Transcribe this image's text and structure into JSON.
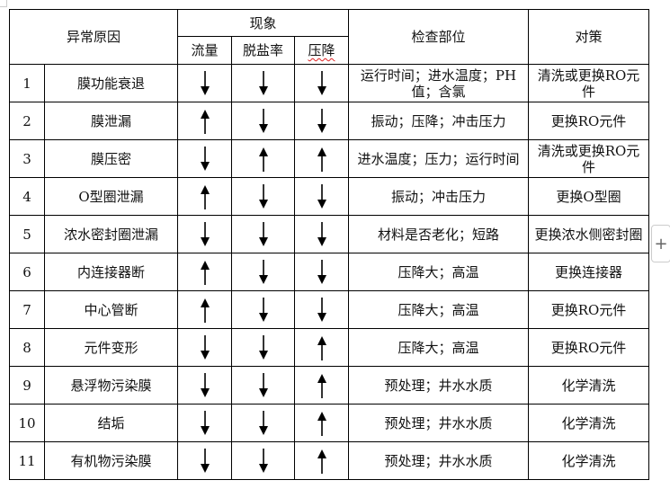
{
  "header": {
    "cause": "异常原因",
    "phenomenon": "现象",
    "flow": "流量",
    "salt_rejection": "脱盐率",
    "pressure_drop": "压降",
    "check_location": "检查部位",
    "countermeasure": "对策"
  },
  "rows": [
    {
      "no": "1",
      "cause": "膜功能衰退",
      "flow": "down",
      "salt": "down",
      "dp": "down",
      "check": "运行时间；进水温度；PH值；含氯",
      "action": "清洗或更换RO元件"
    },
    {
      "no": "2",
      "cause": "膜泄漏",
      "flow": "up",
      "salt": "down",
      "dp": "down",
      "check": "振动；压降；冲击压力",
      "action": "更换RO元件"
    },
    {
      "no": "3",
      "cause": "膜压密",
      "flow": "down",
      "salt": "up",
      "dp": "up",
      "check": "进水温度；压力；运行时间",
      "action": "清洗或更换RO元件"
    },
    {
      "no": "4",
      "cause": "O型圈泄漏",
      "flow": "up",
      "salt": "down",
      "dp": "down",
      "check": "振动；冲击压力",
      "action": "更换O型圈"
    },
    {
      "no": "5",
      "cause": "浓水密封圈泄漏",
      "flow": "down",
      "salt": "down",
      "dp": "down",
      "check": "材料是否老化；短路",
      "action": "更换浓水侧密封圈"
    },
    {
      "no": "6",
      "cause": "内连接器断",
      "flow": "up",
      "salt": "down",
      "dp": "down",
      "check": "压降大；高温",
      "action": "更换连接器"
    },
    {
      "no": "7",
      "cause": "中心管断",
      "flow": "up",
      "salt": "down",
      "dp": "down",
      "check": "压降大；高温",
      "action": "更换RO元件"
    },
    {
      "no": "8",
      "cause": "元件变形",
      "flow": "down",
      "salt": "down",
      "dp": "up",
      "check": "压降大；高温",
      "action": "更换RO元件"
    },
    {
      "no": "9",
      "cause": "悬浮物污染膜",
      "flow": "down",
      "salt": "down",
      "dp": "up",
      "check": "预处理；井水水质",
      "action": "化学清洗"
    },
    {
      "no": "10",
      "cause": "结垢",
      "flow": "down",
      "salt": "down",
      "dp": "up",
      "check": "预处理；井水水质",
      "action": "化学清洗"
    },
    {
      "no": "11",
      "cause": "有机物污染膜",
      "flow": "down",
      "salt": "down",
      "dp": "up",
      "check": "预处理；井水水质",
      "action": "化学清洗"
    }
  ],
  "add_button": "+"
}
